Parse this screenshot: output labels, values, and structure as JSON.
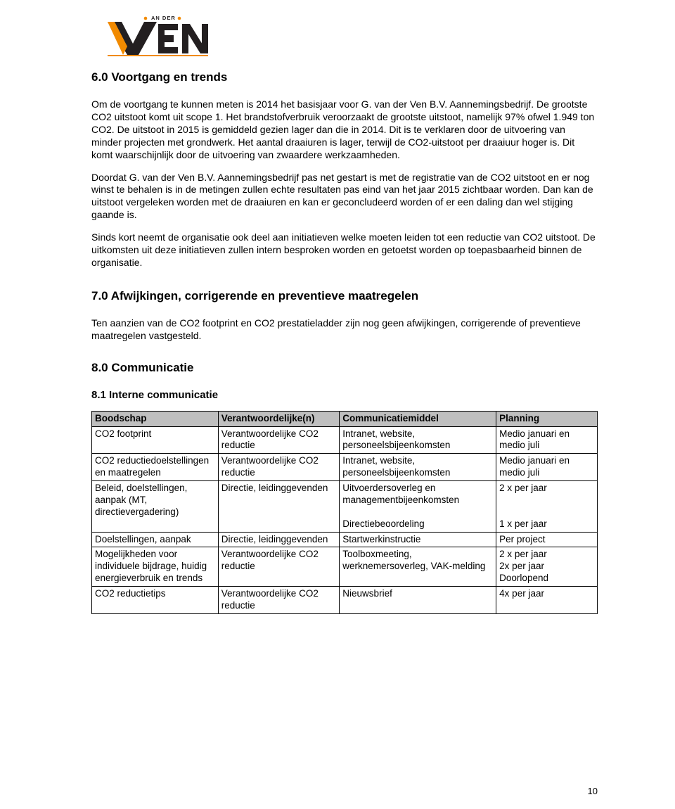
{
  "logo": {
    "text_top": "AN DER",
    "text_bottom": "VEN",
    "dark": "#231f20",
    "orange": "#f18a00"
  },
  "section6": {
    "heading": "6.0  Voortgang en trends",
    "p1": "Om de voortgang te kunnen meten is 2014 het basisjaar voor G. van der Ven B.V. Aannemingsbedrijf. De grootste CO2 uitstoot komt uit scope 1. Het brandstofverbruik veroorzaakt de grootste uitstoot, namelijk 97% ofwel 1.949 ton CO2. De uitstoot in 2015 is gemiddeld gezien lager dan die in 2014. Dit is te verklaren door de uitvoering van minder projecten met grondwerk. Het aantal draaiuren is lager, terwijl de CO2-uitstoot per draaiuur hoger is. Dit komt waarschijnlijk door de uitvoering van zwaardere werkzaamheden.",
    "p2": "Doordat G. van der Ven B.V. Aannemingsbedrijf pas net gestart is met de registratie van de CO2 uitstoot en er nog winst te behalen is in de metingen zullen echte resultaten pas eind van het jaar 2015 zichtbaar worden. Dan kan de uitstoot vergeleken worden met de draaiuren en kan er geconcludeerd worden of er een daling dan wel stijging gaande is.",
    "p3": "Sinds kort neemt de organisatie ook deel aan initiatieven welke moeten leiden tot een reductie van CO2 uitstoot. De uitkomsten uit deze initiatieven zullen intern besproken worden en getoetst worden op toepasbaarheid binnen de organisatie."
  },
  "section7": {
    "heading": "7.0  Afwijkingen, corrigerende en preventieve maatregelen",
    "p1": "Ten aanzien van de CO2 footprint en CO2 prestatieladder zijn nog geen afwijkingen, corrigerende of preventieve maatregelen vastgesteld."
  },
  "section8": {
    "heading": "8.0  Communicatie",
    "subheading": "8.1   Interne communicatie"
  },
  "table": {
    "headers": [
      "Boodschap",
      "Verantwoordelijke(n)",
      "Communicatiemiddel",
      "Planning"
    ],
    "rows": [
      [
        "CO2 footprint",
        "Verantwoordelijke CO2 reductie",
        "Intranet, website, personeelsbijeenkomsten",
        "Medio januari en medio juli"
      ],
      [
        "CO2 reductiedoelstellingen en maatregelen",
        "Verantwoordelijke CO2 reductie",
        "Intranet, website, personeelsbijeenkomsten",
        "Medio januari en medio juli"
      ],
      [
        "Beleid, doelstellingen, aanpak (MT, directievergadering)",
        "Directie, leidinggevenden",
        "Uitvoerdersoverleg en managementbijeenkomsten\n\nDirectiebeoordeling",
        "2 x per jaar\n\n\n1 x per jaar"
      ],
      [
        "Doelstellingen, aanpak",
        "Directie, leidinggevenden",
        "Startwerkinstructie",
        "Per project"
      ],
      [
        "Mogelijkheden voor individuele bijdrage, huidig energieverbruik en trends",
        "Verantwoordelijke CO2 reductie",
        "Toolboxmeeting, werknemersoverleg, VAK-melding",
        "2 x per jaar\n2x per jaar\nDoorlopend"
      ],
      [
        "CO2 reductietips",
        "Verantwoordelijke CO2 reductie",
        "Nieuwsbrief",
        "4x per jaar"
      ]
    ]
  },
  "page_number": "10"
}
